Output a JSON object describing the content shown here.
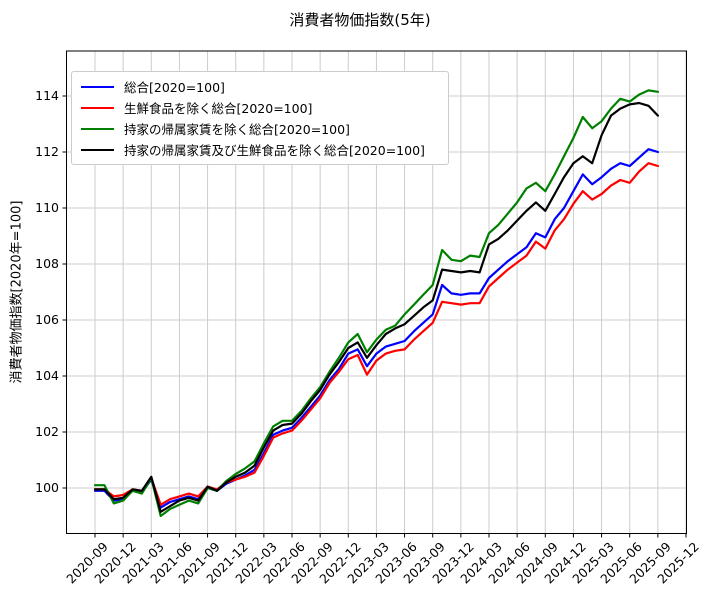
{
  "title": "消費者物価指数(5年)",
  "chart_data": {
    "type": "line",
    "title": "消費者物価指数(5年)",
    "xlabel": "",
    "ylabel": "消費者物価指数[2020年=100]",
    "ylim": [
      98.4,
      115.6
    ],
    "yticks": [
      100,
      102,
      104,
      106,
      108,
      110,
      112,
      114
    ],
    "grid": true,
    "legend_position": "upper-left",
    "x_tick_labels": [
      "2020-09",
      "2020-12",
      "2021-03",
      "2021-06",
      "2021-09",
      "2021-12",
      "2022-03",
      "2022-06",
      "2022-09",
      "2022-12",
      "2023-03",
      "2023-06",
      "2023-09",
      "2023-12",
      "2024-03",
      "2024-06",
      "2024-09",
      "2024-12",
      "2025-03",
      "2025-06",
      "2025-09",
      "2025-12"
    ],
    "x": [
      "2020-09",
      "2020-10",
      "2020-11",
      "2020-12",
      "2021-01",
      "2021-02",
      "2021-03",
      "2021-04",
      "2021-05",
      "2021-06",
      "2021-07",
      "2021-08",
      "2021-09",
      "2021-10",
      "2021-11",
      "2021-12",
      "2022-01",
      "2022-02",
      "2022-03",
      "2022-04",
      "2022-05",
      "2022-06",
      "2022-07",
      "2022-08",
      "2022-09",
      "2022-10",
      "2022-11",
      "2022-12",
      "2023-01",
      "2023-02",
      "2023-03",
      "2023-04",
      "2023-05",
      "2023-06",
      "2023-07",
      "2023-08",
      "2023-09",
      "2023-10",
      "2023-11",
      "2023-12",
      "2024-01",
      "2024-02",
      "2024-03",
      "2024-04",
      "2024-05",
      "2024-06",
      "2024-07",
      "2024-08",
      "2024-09",
      "2024-10",
      "2024-11",
      "2024-12",
      "2025-01",
      "2025-02",
      "2025-03",
      "2025-04",
      "2025-05",
      "2025-06",
      "2025-07",
      "2025-08",
      "2025-09"
    ],
    "series": [
      {
        "name": "総合[2020=100]",
        "color": "#0000ff",
        "values": [
          99.9,
          99.9,
          99.55,
          99.6,
          99.9,
          99.85,
          100.3,
          99.3,
          99.5,
          99.6,
          99.7,
          99.6,
          100.0,
          99.9,
          100.15,
          100.3,
          100.45,
          100.65,
          101.25,
          101.9,
          102.05,
          102.15,
          102.5,
          102.9,
          103.3,
          103.85,
          104.25,
          104.8,
          104.95,
          104.35,
          104.8,
          105.05,
          105.15,
          105.25,
          105.6,
          105.9,
          106.2,
          107.25,
          106.95,
          106.9,
          106.95,
          106.95,
          107.5,
          107.8,
          108.1,
          108.35,
          108.6,
          109.1,
          108.95,
          109.6,
          110.0,
          110.6,
          111.2,
          110.85,
          111.1,
          111.4,
          111.6,
          111.5,
          111.8,
          112.1,
          112.0
        ]
      },
      {
        "name": "生鮮食品を除く総合[2020=100]",
        "color": "#ff0000",
        "values": [
          99.95,
          99.95,
          99.7,
          99.75,
          99.95,
          99.9,
          100.35,
          99.4,
          99.6,
          99.7,
          99.8,
          99.7,
          100.05,
          99.95,
          100.2,
          100.3,
          100.4,
          100.55,
          101.15,
          101.8,
          101.95,
          102.05,
          102.4,
          102.8,
          103.2,
          103.75,
          104.15,
          104.6,
          104.75,
          104.05,
          104.55,
          104.8,
          104.9,
          104.95,
          105.3,
          105.6,
          105.9,
          106.65,
          106.6,
          106.55,
          106.6,
          106.6,
          107.2,
          107.5,
          107.8,
          108.05,
          108.3,
          108.8,
          108.55,
          109.2,
          109.6,
          110.15,
          110.6,
          110.3,
          110.5,
          110.8,
          111.0,
          110.9,
          111.3,
          111.6,
          111.5
        ]
      },
      {
        "name": "持家の帰属家賃を除く総合[2020=100]",
        "color": "#008000",
        "values": [
          100.1,
          100.1,
          99.45,
          99.55,
          99.9,
          99.8,
          100.35,
          99.0,
          99.25,
          99.4,
          99.55,
          99.45,
          100.0,
          99.9,
          100.25,
          100.5,
          100.7,
          100.95,
          101.6,
          102.2,
          102.4,
          102.4,
          102.75,
          103.2,
          103.6,
          104.15,
          104.65,
          105.2,
          105.5,
          104.85,
          105.3,
          105.65,
          105.8,
          106.2,
          106.55,
          106.9,
          107.25,
          108.5,
          108.15,
          108.1,
          108.3,
          108.25,
          109.1,
          109.4,
          109.8,
          110.2,
          110.7,
          110.9,
          110.6,
          111.2,
          111.85,
          112.5,
          113.25,
          112.85,
          113.1,
          113.55,
          113.9,
          113.8,
          114.05,
          114.2,
          114.15
        ]
      },
      {
        "name": "持家の帰属家賃及び生鮮食品を除く総合[2020=100]",
        "color": "#000000",
        "values": [
          99.95,
          99.95,
          99.6,
          99.65,
          99.95,
          99.9,
          100.4,
          99.15,
          99.35,
          99.55,
          99.65,
          99.55,
          100.05,
          99.9,
          100.2,
          100.4,
          100.55,
          100.8,
          101.45,
          102.05,
          102.25,
          102.3,
          102.65,
          103.1,
          103.5,
          104.05,
          104.5,
          105.0,
          105.2,
          104.65,
          105.1,
          105.5,
          105.7,
          105.85,
          106.15,
          106.45,
          106.7,
          107.8,
          107.75,
          107.7,
          107.75,
          107.7,
          108.7,
          108.9,
          109.2,
          109.55,
          109.9,
          110.2,
          109.9,
          110.5,
          111.1,
          111.6,
          111.85,
          111.6,
          112.6,
          113.3,
          113.55,
          113.7,
          113.75,
          113.65,
          113.3
        ]
      }
    ]
  }
}
